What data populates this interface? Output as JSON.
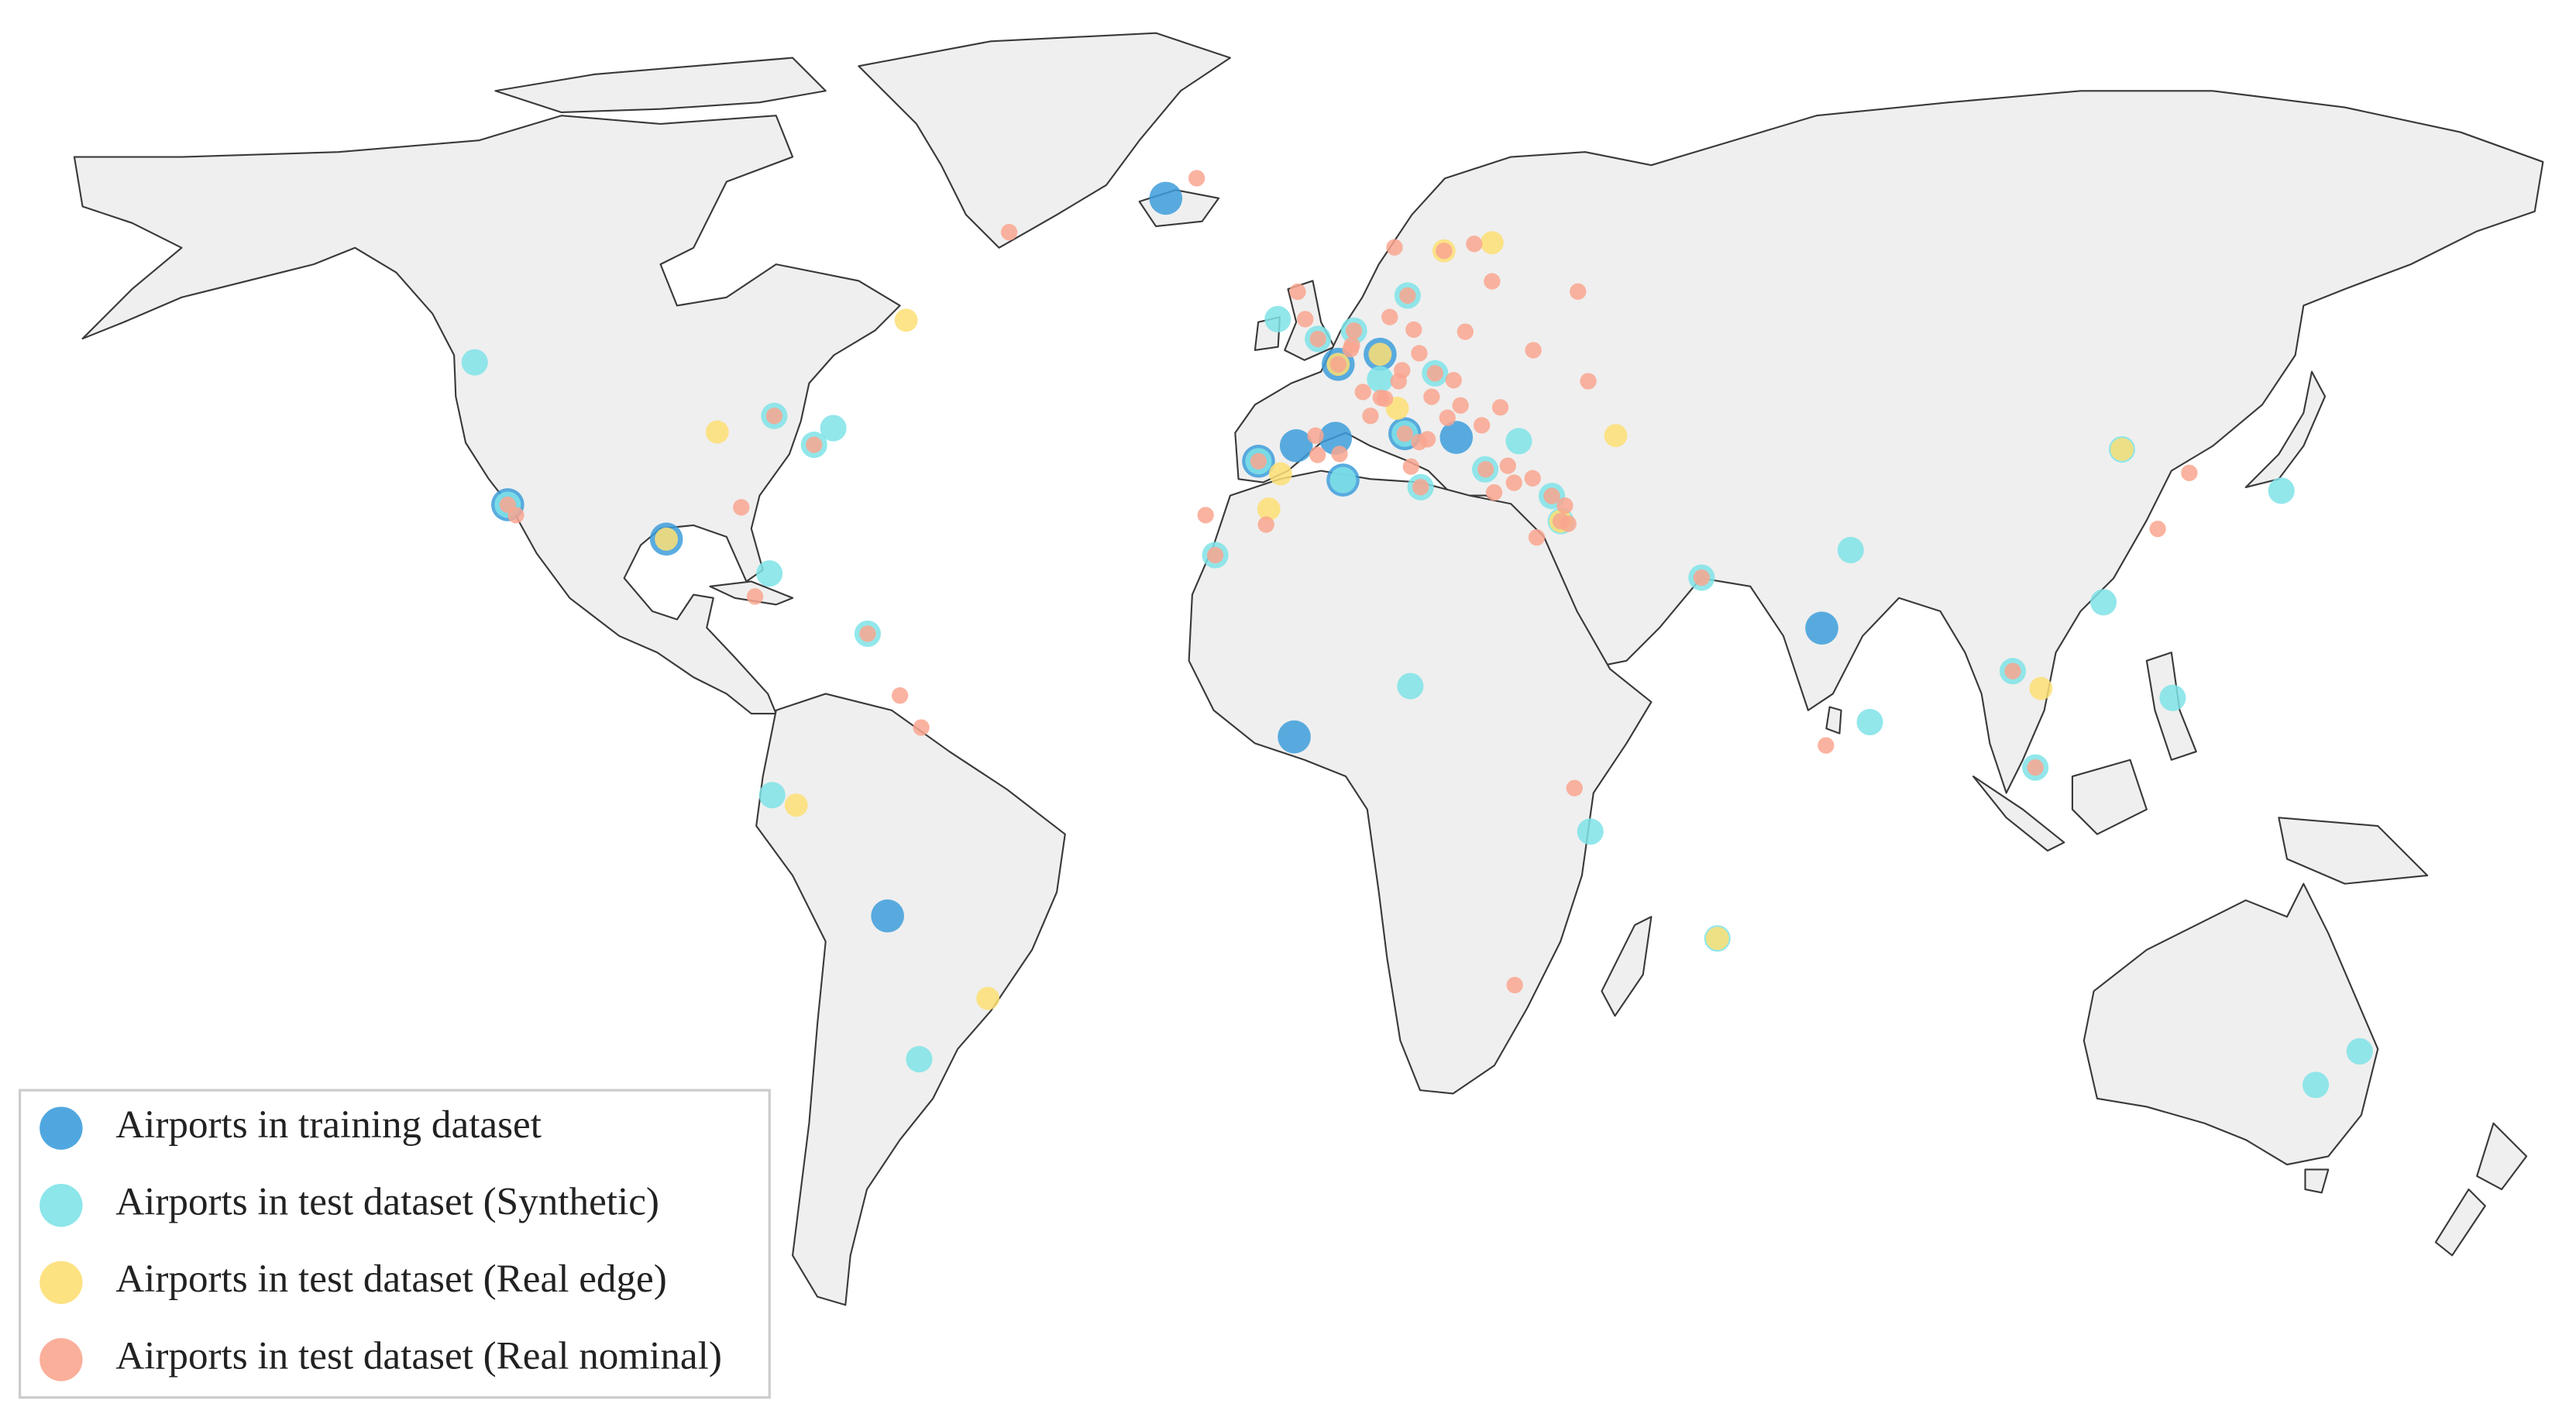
{
  "chart_data": {
    "type": "scatter",
    "series": [
      {
        "name": "Airports in training dataset",
        "color": "#3d9ddb",
        "lon": [
          -22.6,
          -118.4,
          -95.3,
          -9.1,
          -3.6,
          3.2,
          2.1,
          2.5,
          8.6,
          12.2,
          19.7,
          72.9,
          -3.9,
          -63.1
        ],
        "lat": [
          64.0,
          33.9,
          29.9,
          38.8,
          40.5,
          36.7,
          41.3,
          49.0,
          50.0,
          41.8,
          41.4,
          19.1,
          5.3,
          -17.6
        ]
      },
      {
        "name": "Airports in test dataset (Synthetic)",
        "color": "#7fe3e8",
        "lon": [
          -123.2,
          -118.4,
          -79.6,
          -71.0,
          -73.8,
          -80.3,
          -66.0,
          -79.9,
          -58.5,
          -15.4,
          -6.3,
          -0.45,
          4.8,
          12.6,
          8.6,
          16.6,
          12.2,
          14.5,
          23.9,
          28.8,
          33.6,
          34.9,
          55.4,
          77.1,
          79.9,
          100.7,
          103.99,
          113.9,
          123.98,
          116.6,
          139.8,
          151.2,
          144.8,
          39.2,
          13.0,
          57.7,
          -9.1,
          3.2
        ],
        "lat": [
          49.2,
          33.9,
          43.7,
          42.4,
          40.6,
          25.8,
          18.4,
          -2.2,
          -34.8,
          28.0,
          53.4,
          51.5,
          52.3,
          55.6,
          47.5,
          48.1,
          41.8,
          35.9,
          37.9,
          41.0,
          34.9,
          32.0,
          25.3,
          28.6,
          7.2,
          13.7,
          1.36,
          22.3,
          10.3,
          40.1,
          35.5,
          -33.9,
          -37.7,
          -6.9,
          11.8,
          -20.4,
          38.8,
          36.7
        ]
      },
      {
        "name": "Airports in test dataset (Real edge)",
        "color": "#fddf74",
        "lon": [
          -60.4,
          -87.9,
          -95.3,
          -76.4,
          57.7,
          17.9,
          42.9,
          -7.6,
          -5.9,
          116.6,
          104.8,
          -48.5,
          2.5,
          8.6,
          24.9,
          34.9,
          11.1
        ],
        "lat": [
          53.3,
          41.98,
          29.9,
          -3.5,
          -20.4,
          59.6,
          41.6,
          33.4,
          37.4,
          40.1,
          11.5,
          -27.7,
          49.0,
          50.0,
          60.3,
          32.0,
          44.5
        ]
      },
      {
        "name": "Airports in test dataset (Real nominal)",
        "color": "#f9a68f",
        "lon": [
          -45.4,
          -18.1,
          -117.2,
          -84.4,
          -82.4,
          -61.3,
          -58.2,
          -16.8,
          -8.0,
          31.4,
          35.5,
          35.99,
          37.4,
          30.9,
          36.9,
          73.5,
          126.4,
          121.8,
          103.99,
          28.2,
          -118.4,
          -79.6,
          -73.8,
          -66.0,
          2.5,
          4.5,
          11.8,
          8.7,
          14.3,
          21.0,
          19.3,
          10.7,
          24.9,
          23.97,
          13.5,
          10.0,
          26.1,
          23.4,
          20.3,
          16.1,
          14.3,
          13.1,
          25.2,
          28.1,
          27.2,
          30.8,
          -0.5,
          2.7,
          7.2,
          6.1,
          -2.3,
          -3.4,
          -0.45,
          4.8,
          12.2,
          16.6,
          12.6,
          17.9,
          34.9,
          33.6,
          100.7,
          55.4,
          -9.1,
          -15.4,
          -0.8,
          9.3,
          18.4,
          4.3,
          11.3,
          15.5,
          14.5,
          22.3,
          38.9
        ],
        "lat": [
          61.2,
          65.6,
          32.7,
          33.6,
          23.0,
          10.6,
          6.5,
          32.7,
          31.6,
          30.1,
          33.8,
          31.7,
          55.97,
          50.4,
          -1.3,
          4.2,
          37.5,
          31.1,
          1.36,
          -26.1,
          33.9,
          43.7,
          40.6,
          18.4,
          49.0,
          50.9,
          48.4,
          45.6,
          50.1,
          52.2,
          47.4,
          59.9,
          56.9,
          37.9,
          52.4,
          53.6,
          44.6,
          42.7,
          44.8,
          45.7,
          40.9,
          38.2,
          35.3,
          36.4,
          38.3,
          36.9,
          39.5,
          39.6,
          43.7,
          46.2,
          53.4,
          55.95,
          51.5,
          52.3,
          41.8,
          48.1,
          55.6,
          59.6,
          32.0,
          34.9,
          13.7,
          25.3,
          38.8,
          28.0,
          41.6,
          45.5,
          43.5,
          50.5,
          47.3,
          41.2,
          35.9,
          60.2,
          47.3
        ]
      }
    ]
  }
}
